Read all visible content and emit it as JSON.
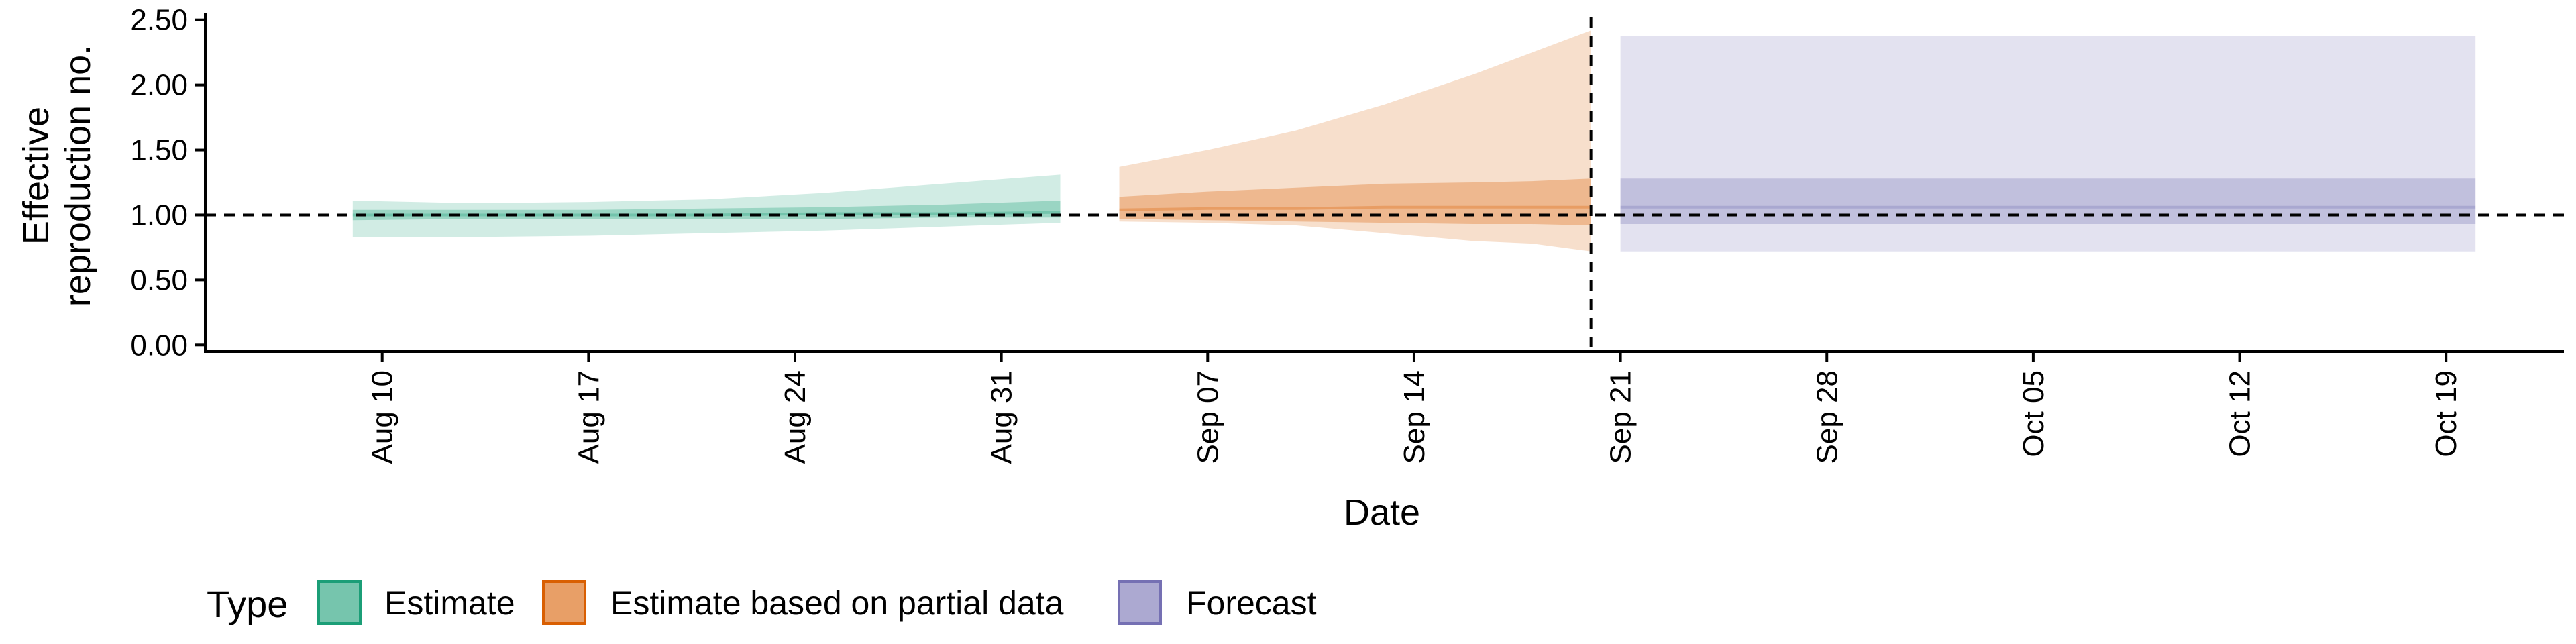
{
  "chart_data": {
    "type": "area",
    "xlabel": "Date",
    "ylabel": "Effective reproduction no.",
    "ylabel_lines": [
      "Effective",
      "reproduction no."
    ],
    "ylim": [
      -0.05,
      2.55
    ],
    "x_date_range": [
      "2021-08-04",
      "2021-10-23"
    ],
    "y_ticks": [
      0.0,
      0.5,
      1.0,
      1.5,
      2.0,
      2.5
    ],
    "y_tick_labels": [
      "0.00",
      "0.50",
      "1.00",
      "1.50",
      "2.00",
      "2.50"
    ],
    "x_ticks": [
      "2021-08-10",
      "2021-08-17",
      "2021-08-24",
      "2021-08-31",
      "2021-09-07",
      "2021-09-14",
      "2021-09-21",
      "2021-09-28",
      "2021-10-05",
      "2021-10-12",
      "2021-10-19"
    ],
    "x_tick_labels": [
      "Aug 10",
      "Aug 17",
      "Aug 24",
      "Aug 31",
      "Sep 07",
      "Sep 14",
      "Sep 21",
      "Sep 28",
      "Oct 05",
      "Oct 12",
      "Oct 19"
    ],
    "reference_lines": {
      "y": 1.0,
      "x": "2021-09-20"
    },
    "legend": {
      "title": "Type",
      "placement": "bottom-left",
      "items": [
        "Estimate",
        "Estimate based on partial data",
        "Forecast"
      ]
    },
    "series": [
      {
        "name": "Estimate",
        "color": "#1b9e77",
        "dates": [
          "2021-08-09",
          "2021-08-13",
          "2021-08-17",
          "2021-08-21",
          "2021-08-25",
          "2021-08-29",
          "2021-09-02"
        ],
        "outer_upper": [
          1.11,
          1.09,
          1.1,
          1.12,
          1.17,
          1.24,
          1.31
        ],
        "inner_upper": [
          1.04,
          1.04,
          1.04,
          1.05,
          1.06,
          1.08,
          1.11
        ],
        "median": [
          1.0,
          1.0,
          1.0,
          1.0,
          1.01,
          1.01,
          1.02
        ],
        "inner_lower": [
          0.96,
          0.97,
          0.97,
          0.97,
          0.97,
          0.98,
          0.98
        ],
        "outer_lower": [
          0.83,
          0.83,
          0.84,
          0.86,
          0.88,
          0.91,
          0.94
        ]
      },
      {
        "name": "Estimate based on partial data",
        "color": "#d95f02",
        "dates": [
          "2021-09-04",
          "2021-09-07",
          "2021-09-10",
          "2021-09-13",
          "2021-09-16",
          "2021-09-18",
          "2021-09-20"
        ],
        "outer_upper": [
          1.37,
          1.5,
          1.65,
          1.85,
          2.08,
          2.25,
          2.42
        ],
        "inner_upper": [
          1.14,
          1.18,
          1.21,
          1.24,
          1.25,
          1.26,
          1.28
        ],
        "median": [
          1.04,
          1.05,
          1.05,
          1.06,
          1.06,
          1.06,
          1.06
        ],
        "inner_lower": [
          0.97,
          0.96,
          0.95,
          0.94,
          0.93,
          0.93,
          0.92
        ],
        "outer_lower": [
          0.95,
          0.94,
          0.92,
          0.86,
          0.8,
          0.78,
          0.72
        ]
      },
      {
        "name": "Forecast",
        "color": "#7570b3",
        "dates": [
          "2021-09-21",
          "2021-10-20"
        ],
        "outer_upper": [
          2.38,
          2.38
        ],
        "inner_upper": [
          1.28,
          1.28
        ],
        "median": [
          1.06,
          1.06
        ],
        "inner_lower": [
          0.93,
          0.93
        ],
        "outer_lower": [
          0.72,
          0.72
        ]
      }
    ]
  }
}
